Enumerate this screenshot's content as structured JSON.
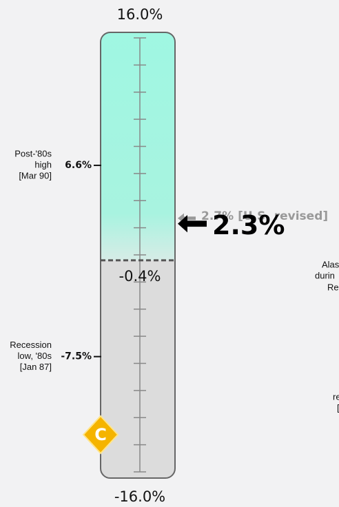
{
  "chart_data": {
    "type": "gauge",
    "ylim": [
      -16,
      16
    ],
    "yticks": [
      {
        "value": 16,
        "label": "16.0%"
      },
      {
        "value": -16,
        "label": "-16.0%"
      }
    ],
    "minor_ticks": [
      14,
      12,
      10,
      8,
      6,
      4,
      2,
      0,
      -2,
      -4,
      -6,
      -8,
      -10,
      -12,
      -14
    ],
    "threshold": {
      "value": -0.4,
      "label": "-0.4%"
    },
    "colors": {
      "above": "#9ff7e2",
      "below": "#dcdcdc"
    },
    "reference_marks": [
      {
        "value": 6.6,
        "label": "6.6%",
        "note": [
          "Post-'80s",
          "high",
          "[Mar 90]"
        ]
      },
      {
        "value": -7.5,
        "label": "-7.5%",
        "note": [
          "Recession",
          "low, '80s",
          "[Jan 87]"
        ]
      }
    ],
    "pointers": [
      {
        "value": 2.7,
        "label": "2.7% [U.S. revised]",
        "color": "#999999"
      },
      {
        "value": 2.3,
        "label": "2.3%",
        "color": "#000000"
      }
    ],
    "logo": "C",
    "side_texts": [
      [
        "Alas",
        "durin",
        "Re"
      ],
      [
        "re",
        "["
      ]
    ]
  }
}
